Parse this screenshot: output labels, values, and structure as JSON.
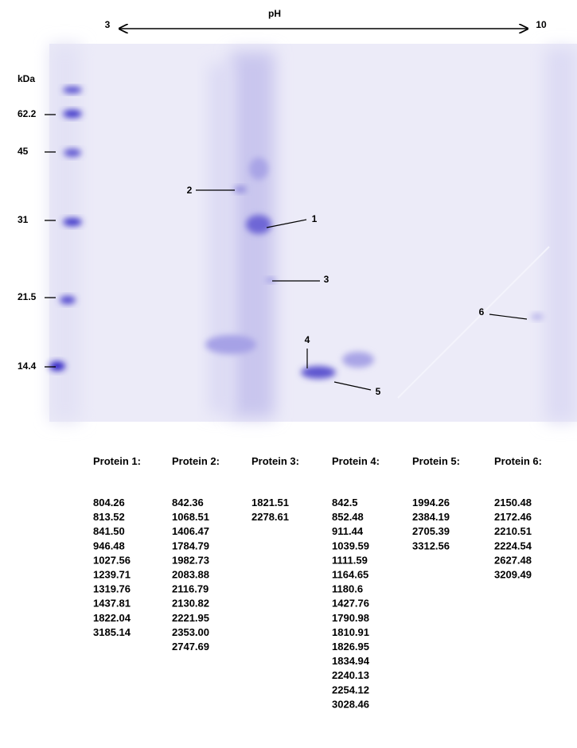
{
  "gel": {
    "ph_axis": {
      "left": "3",
      "label": "pH",
      "right": "10"
    },
    "mw_unit": "kDa",
    "mw_markers": [
      "62.2",
      "45",
      "31",
      "21.5",
      "14.4"
    ],
    "spots": [
      "1",
      "2",
      "3",
      "4",
      "5",
      "6"
    ]
  },
  "proteins": [
    {
      "header": "Protein 1:",
      "masses": [
        "804.26",
        "813.52",
        "841.50",
        "946.48",
        "1027.56",
        "1239.71",
        "1319.76",
        "1437.81",
        "1822.04",
        "3185.14"
      ]
    },
    {
      "header": "Protein 2:",
      "masses": [
        "842.36",
        "1068.51",
        "1406.47",
        "1784.79",
        "1982.73",
        "2083.88",
        "2116.79",
        "2130.82",
        "2221.95",
        "2353.00",
        "2747.69"
      ]
    },
    {
      "header": "Protein 3:",
      "masses": [
        "1821.51",
        "2278.61"
      ]
    },
    {
      "header": "Protein 4:",
      "masses": [
        "842.5",
        "852.48",
        "911.44",
        "1039.59",
        "1111.59",
        "1164.65",
        "1180.6",
        "1427.76",
        "1790.98",
        "1810.91",
        "1826.95",
        "1834.94",
        "2240.13",
        "2254.12",
        "3028.46"
      ]
    },
    {
      "header": "Protein 5:",
      "masses": [
        "1994.26",
        "2384.19",
        "2705.39",
        "3312.56"
      ]
    },
    {
      "header": "Protein 6:",
      "masses": [
        "2150.48",
        "2172.46",
        "2210.51",
        "2224.54",
        "2627.48",
        "3209.49"
      ]
    }
  ]
}
